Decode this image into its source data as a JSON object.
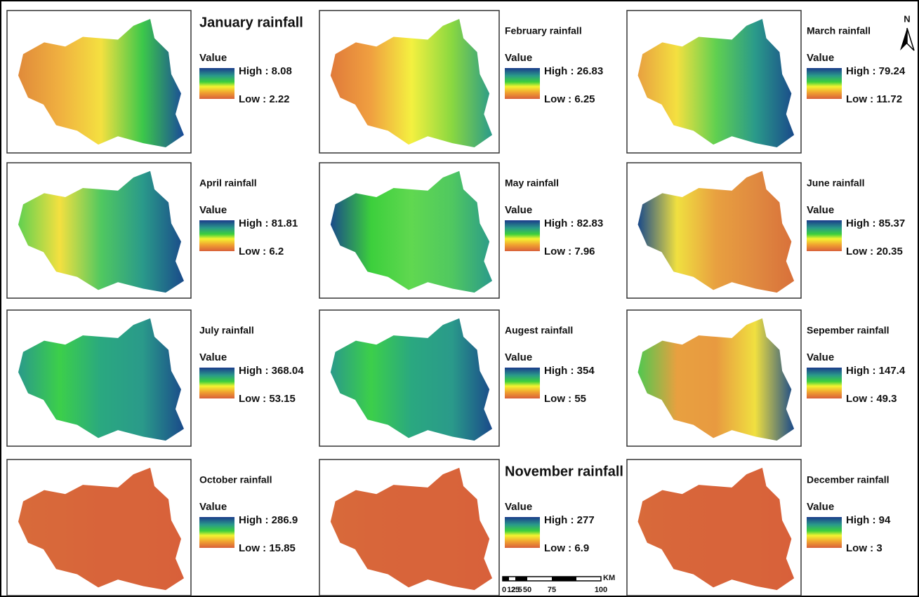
{
  "panels": [
    {
      "title": "January rainfall",
      "legend_title": "Value",
      "high": "High : 8.08",
      "low": "Low : 2.22"
    },
    {
      "title": "February rainfall",
      "legend_title": "Value",
      "high": "High : 26.83",
      "low": "Low : 6.25"
    },
    {
      "title": "March rainfall",
      "legend_title": "Value",
      "high": "High : 79.24",
      "low": "Low : 11.72"
    },
    {
      "title": "April rainfall",
      "legend_title": "Value",
      "high": "High : 81.81",
      "low": "Low : 6.2"
    },
    {
      "title": "May rainfall",
      "legend_title": "Value",
      "high": "High : 82.83",
      "low": "Low : 7.96"
    },
    {
      "title": "June rainfall",
      "legend_title": "Value",
      "high": "High : 85.37",
      "low": "Low : 20.35"
    },
    {
      "title": "July rainfall",
      "legend_title": "Value",
      "high": "High : 368.04",
      "low": "Low : 53.15"
    },
    {
      "title": "Augest rainfall",
      "legend_title": "Value",
      "high": "High : 354",
      "low": "Low : 55"
    },
    {
      "title": "Sepember rainfall",
      "legend_title": "Value",
      "high": "High : 147.4",
      "low": "Low : 49.3"
    },
    {
      "title": "October rainfall",
      "legend_title": "Value",
      "high": "High : 286.9",
      "low": "Low : 15.85"
    },
    {
      "title": "November rainfall",
      "legend_title": "Value",
      "high": "High : 277",
      "low": "Low : 6.9"
    },
    {
      "title": "December rainfall",
      "legend_title": "Value",
      "high": "High : 94",
      "low": "Low : 3"
    }
  ],
  "scale_bar": {
    "unit": "KM",
    "ticks": [
      "0",
      "12.5",
      "25",
      "50",
      "75",
      "100"
    ]
  },
  "north_arrow": "N"
}
